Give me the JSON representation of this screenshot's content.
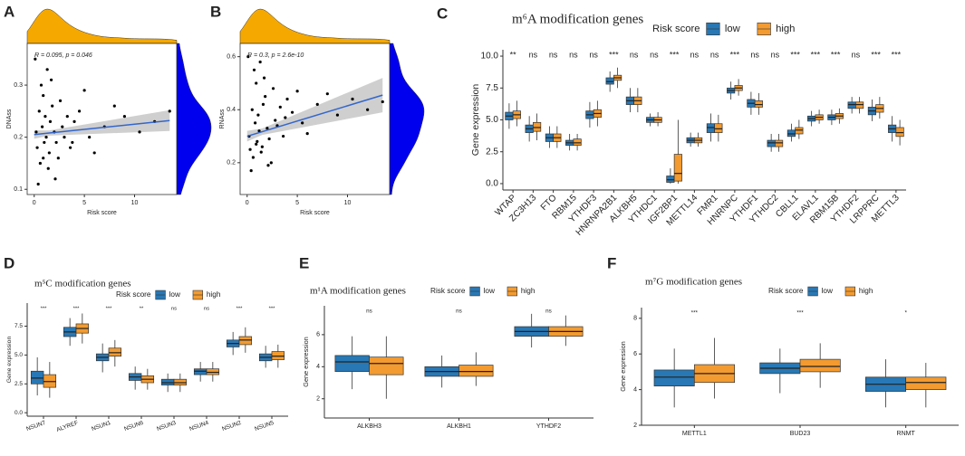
{
  "chart_data": [
    {
      "type": "scatter",
      "label": "A",
      "xlabel": "Risk score",
      "ylabel": "DNAss",
      "annotation": "R = 0.095, p = 0.046",
      "xlim": [
        -0.7,
        14.2
      ],
      "ylim": [
        0.09,
        0.38
      ],
      "xticks": [
        0,
        5,
        10
      ],
      "yticks": [
        0.1,
        0.2,
        0.3
      ],
      "color": "#000000",
      "trend_color": "#3366cc",
      "marginal_x_color": "#f5a800",
      "marginal_y_color": "#0000ee",
      "x": [
        0.2,
        0.3,
        0.5,
        0.6,
        0.8,
        0.9,
        1.0,
        1.1,
        1.2,
        1.3,
        1.5,
        1.6,
        1.8,
        2.0,
        2.2,
        2.4,
        2.6,
        2.8,
        3.0,
        3.3,
        3.6,
        4.0,
        4.5,
        5.0,
        5.5,
        6.0,
        7.0,
        8.0,
        9.0,
        10.5,
        12.0,
        13.5,
        0.4,
        0.7,
        1.4,
        0.1,
        2.1,
        1.7,
        0.9,
        3.8
      ],
      "y": [
        0.21,
        0.18,
        0.25,
        0.15,
        0.22,
        0.28,
        0.19,
        0.24,
        0.2,
        0.33,
        0.17,
        0.23,
        0.26,
        0.21,
        0.19,
        0.16,
        0.27,
        0.22,
        0.2,
        0.24,
        0.18,
        0.23,
        0.25,
        0.29,
        0.2,
        0.17,
        0.22,
        0.26,
        0.24,
        0.21,
        0.23,
        0.25,
        0.11,
        0.3,
        0.14,
        0.35,
        0.12,
        0.31,
        0.16,
        0.19
      ],
      "trend": {
        "x": [
          0,
          1.5,
          13.5
        ],
        "y": [
          0.205,
          0.208,
          0.232
        ],
        "lower": [
          0.197,
          0.203,
          0.212
        ],
        "upper": [
          0.213,
          0.213,
          0.252
        ]
      }
    },
    {
      "type": "scatter",
      "label": "B",
      "xlabel": "Risk score",
      "ylabel": "RNAss",
      "annotation": "R = 0.3, p = 2.6e-10",
      "xlim": [
        -0.7,
        14.2
      ],
      "ylim": [
        0.08,
        0.65
      ],
      "xticks": [
        0,
        5,
        10
      ],
      "yticks": [
        0.2,
        0.4,
        0.6
      ],
      "color": "#000000",
      "trend_color": "#3366cc",
      "marginal_x_color": "#f5a800",
      "marginal_y_color": "#0000ee",
      "x": [
        0.2,
        0.3,
        0.5,
        0.6,
        0.8,
        0.9,
        1.0,
        1.1,
        1.2,
        1.3,
        1.5,
        1.6,
        1.8,
        2.0,
        2.2,
        2.4,
        2.6,
        2.8,
        3.0,
        3.3,
        3.6,
        4.0,
        4.5,
        5.0,
        5.5,
        6.0,
        7.0,
        8.0,
        9.0,
        10.5,
        12.0,
        13.5,
        0.4,
        0.7,
        1.4,
        0.1,
        2.1,
        1.7,
        0.9,
        3.8
      ],
      "y": [
        0.3,
        0.25,
        0.4,
        0.22,
        0.35,
        0.5,
        0.28,
        0.38,
        0.32,
        0.58,
        0.26,
        0.42,
        0.45,
        0.33,
        0.29,
        0.2,
        0.48,
        0.36,
        0.34,
        0.41,
        0.3,
        0.44,
        0.39,
        0.47,
        0.35,
        0.31,
        0.42,
        0.46,
        0.38,
        0.44,
        0.4,
        0.43,
        0.17,
        0.55,
        0.24,
        0.6,
        0.19,
        0.52,
        0.27,
        0.37
      ],
      "trend": {
        "x": [
          0,
          1.5,
          13.5
        ],
        "y": [
          0.3,
          0.317,
          0.455
        ],
        "lower": [
          0.28,
          0.305,
          0.39
        ],
        "upper": [
          0.32,
          0.329,
          0.52
        ]
      }
    },
    {
      "type": "boxplot",
      "label": "C",
      "title": "m⁶A modification genes",
      "legend_title": "Risk score",
      "ylabel": "Gene expression",
      "ylim": [
        -0.5,
        10.5
      ],
      "yticks": [
        {
          "value": 0,
          "label": "0.0"
        },
        2.5,
        {
          "value": 5,
          "label": "5.0"
        },
        7.5,
        {
          "value": 10,
          "label": "10.0"
        }
      ],
      "categories": [
        "WTAP",
        "ZC3H13",
        "FTO",
        "RBM15",
        "YTHDF3",
        "HNRNPA2B1",
        "ALKBH5",
        "YTHDC1",
        "IGF2BP1",
        "METTL14",
        "FMR1",
        "HNRNPC",
        "YTHDF1",
        "YTHDC2",
        "CBLL1",
        "ELAVL1",
        "RBM15B",
        "YTHDF2",
        "LRPPRC",
        "METTL3"
      ],
      "significance": [
        "**",
        "ns",
        "ns",
        "ns",
        "ns",
        "***",
        "ns",
        "ns",
        "***",
        "ns",
        "ns",
        "***",
        "ns",
        "ns",
        "***",
        "***",
        "***",
        "ns",
        "***",
        "***"
      ],
      "series": [
        {
          "name": "low",
          "color": "#2878b5",
          "values": [
            [
              4.3,
              5.0,
              5.3,
              5.6,
              6.3
            ],
            [
              3.3,
              4.0,
              4.3,
              4.6,
              5.3
            ],
            [
              2.8,
              3.3,
              3.6,
              3.9,
              4.5
            ],
            [
              2.6,
              3.0,
              3.2,
              3.4,
              3.9
            ],
            [
              4.4,
              5.1,
              5.4,
              5.7,
              6.4
            ],
            [
              7.2,
              7.8,
              8.0,
              8.3,
              8.8
            ],
            [
              5.6,
              6.2,
              6.5,
              6.8,
              7.5
            ],
            [
              4.5,
              4.8,
              5.0,
              5.2,
              5.5
            ],
            [
              0,
              0.1,
              0.3,
              0.6,
              1.2
            ],
            [
              2.9,
              3.2,
              3.4,
              3.6,
              4.0
            ],
            [
              3.3,
              4.0,
              4.4,
              4.7,
              5.5
            ],
            [
              6.6,
              7.1,
              7.3,
              7.5,
              8.0
            ],
            [
              5.4,
              6.0,
              6.3,
              6.6,
              7.2
            ],
            [
              2.5,
              2.9,
              3.2,
              3.4,
              3.9
            ],
            [
              3.3,
              3.7,
              3.9,
              4.2,
              4.7
            ],
            [
              4.5,
              4.9,
              5.1,
              5.3,
              5.7
            ],
            [
              4.6,
              5.0,
              5.2,
              5.4,
              5.8
            ],
            [
              5.5,
              5.9,
              6.2,
              6.4,
              6.8
            ],
            [
              4.9,
              5.4,
              5.7,
              6.0,
              6.6
            ],
            [
              3.3,
              4.0,
              4.3,
              4.6,
              5.3
            ]
          ]
        },
        {
          "name": "high",
          "color": "#f39b30",
          "values": [
            [
              4.5,
              5.1,
              5.4,
              5.7,
              6.5
            ],
            [
              3.4,
              4.1,
              4.4,
              4.8,
              5.5
            ],
            [
              2.8,
              3.3,
              3.6,
              3.9,
              4.5
            ],
            [
              2.6,
              3.0,
              3.2,
              3.5,
              3.9
            ],
            [
              4.5,
              5.2,
              5.5,
              5.8,
              6.5
            ],
            [
              7.5,
              8.1,
              8.3,
              8.5,
              9.1
            ],
            [
              5.6,
              6.2,
              6.5,
              6.8,
              7.5
            ],
            [
              4.5,
              4.8,
              5.0,
              5.2,
              5.6
            ],
            [
              0,
              0.2,
              0.8,
              2.3,
              5.0
            ],
            [
              2.9,
              3.2,
              3.4,
              3.6,
              4.0
            ],
            [
              3.3,
              4.0,
              4.3,
              4.7,
              5.4
            ],
            [
              6.9,
              7.3,
              7.5,
              7.7,
              8.2
            ],
            [
              5.4,
              6.0,
              6.2,
              6.5,
              7.1
            ],
            [
              2.5,
              2.9,
              3.2,
              3.4,
              3.9
            ],
            [
              3.5,
              3.9,
              4.2,
              4.4,
              5.0
            ],
            [
              4.7,
              5.0,
              5.2,
              5.4,
              5.8
            ],
            [
              4.7,
              5.1,
              5.3,
              5.5,
              5.9
            ],
            [
              5.5,
              5.9,
              6.2,
              6.4,
              6.8
            ],
            [
              5.1,
              5.6,
              5.9,
              6.2,
              6.8
            ],
            [
              3.0,
              3.7,
              4.0,
              4.4,
              5.0
            ]
          ]
        }
      ]
    },
    {
      "type": "boxplot",
      "label": "D",
      "title": "m⁵C modification genes",
      "legend_title": "Risk score",
      "ylabel": "Gene expression",
      "ylim": [
        -0.3,
        9.5
      ],
      "yticks": [
        {
          "value": 0,
          "label": "0.0"
        },
        2.5,
        {
          "value": 5,
          "label": "5.0"
        },
        7.5
      ],
      "categories": [
        "NSUN7",
        "ALYREF",
        "NSUN1",
        "NSUN6",
        "NSUN3",
        "NSUN4",
        "NSUN2",
        "NSUN5"
      ],
      "significance": [
        "***",
        "***",
        "***",
        "**",
        "ns",
        "ns",
        "***",
        "***"
      ],
      "series": [
        {
          "name": "low",
          "color": "#2878b5",
          "values": [
            [
              1.5,
              2.5,
              3.0,
              3.6,
              4.8
            ],
            [
              5.8,
              6.6,
              7.0,
              7.4,
              8.2
            ],
            [
              3.5,
              4.5,
              4.8,
              5.1,
              6.0
            ],
            [
              2.0,
              2.8,
              3.1,
              3.4,
              4.0
            ],
            [
              1.8,
              2.4,
              2.6,
              2.9,
              3.4
            ],
            [
              2.7,
              3.3,
              3.6,
              3.8,
              4.4
            ],
            [
              5.0,
              5.7,
              6.0,
              6.3,
              7.0
            ],
            [
              3.9,
              4.5,
              4.8,
              5.1,
              5.8
            ]
          ]
        },
        {
          "name": "high",
          "color": "#f39b30",
          "values": [
            [
              1.3,
              2.2,
              2.7,
              3.3,
              4.4
            ],
            [
              6.0,
              6.9,
              7.3,
              7.7,
              8.6
            ],
            [
              4.0,
              4.9,
              5.2,
              5.6,
              6.3
            ],
            [
              2.0,
              2.6,
              2.9,
              3.2,
              3.8
            ],
            [
              1.8,
              2.4,
              2.6,
              2.9,
              3.4
            ],
            [
              2.7,
              3.3,
              3.5,
              3.8,
              4.4
            ],
            [
              5.2,
              5.9,
              6.3,
              6.6,
              7.4
            ],
            [
              3.9,
              4.6,
              4.9,
              5.3,
              5.9
            ]
          ]
        }
      ]
    },
    {
      "type": "boxplot",
      "label": "E",
      "title": "m¹A modification genes",
      "legend_title": "Risk score",
      "ylabel": "Gene expression",
      "ylim": [
        0.8,
        7.8
      ],
      "yticks": [
        2,
        4,
        6
      ],
      "categories": [
        "ALKBH3",
        "ALKBH1",
        "YTHDF2"
      ],
      "significance": [
        "ns",
        "ns",
        "ns"
      ],
      "series": [
        {
          "name": "low",
          "color": "#2878b5",
          "values": [
            [
              2.6,
              3.7,
              4.3,
              4.7,
              5.9
            ],
            [
              2.7,
              3.4,
              3.7,
              4.0,
              4.7
            ],
            [
              5.2,
              5.9,
              6.2,
              6.5,
              7.3
            ]
          ]
        },
        {
          "name": "high",
          "color": "#f39b30",
          "values": [
            [
              2.0,
              3.5,
              4.2,
              4.6,
              5.9
            ],
            [
              2.8,
              3.4,
              3.7,
              4.1,
              4.9
            ],
            [
              5.3,
              5.9,
              6.2,
              6.5,
              7.2
            ]
          ]
        }
      ]
    },
    {
      "type": "boxplot",
      "label": "F",
      "title": "m⁷G modification genes",
      "legend_title": "Risk score",
      "ylabel": "Gene expression",
      "ylim": [
        2,
        8.6
      ],
      "yticks": [
        2,
        4,
        6,
        8
      ],
      "categories": [
        "METTL1",
        "BUD23",
        "RNMT"
      ],
      "significance": [
        "***",
        "***",
        "*"
      ],
      "series": [
        {
          "name": "low",
          "color": "#2878b5",
          "values": [
            [
              3.0,
              4.2,
              4.7,
              5.1,
              6.3
            ],
            [
              3.8,
              4.9,
              5.2,
              5.5,
              6.3
            ],
            [
              3.0,
              3.9,
              4.3,
              4.7,
              5.7
            ]
          ]
        },
        {
          "name": "high",
          "color": "#f39b30",
          "values": [
            [
              3.5,
              4.4,
              4.9,
              5.4,
              6.9
            ],
            [
              4.1,
              5.0,
              5.3,
              5.7,
              6.6
            ],
            [
              3.0,
              4.0,
              4.4,
              4.7,
              5.5
            ]
          ]
        }
      ]
    }
  ]
}
